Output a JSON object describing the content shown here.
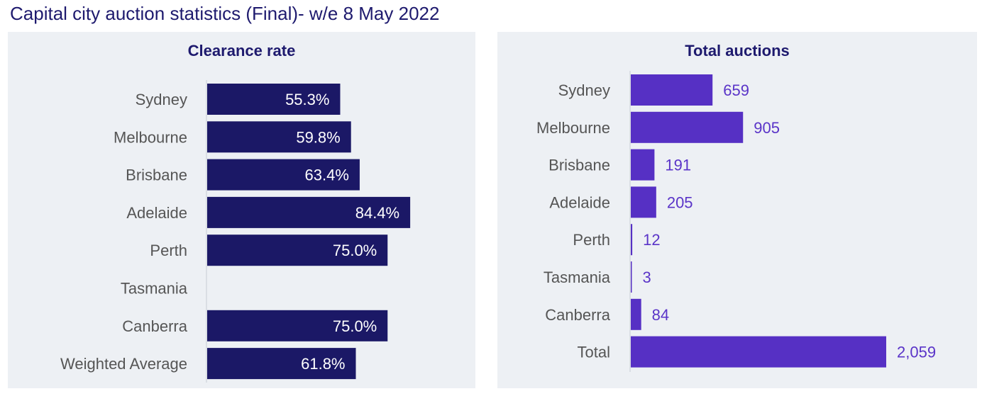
{
  "header": {
    "title": "Capital city auction statistics (Final)- w/e 8 May 2022"
  },
  "colors": {
    "clearance_bar": "#1b1866",
    "auctions_bar": "#5630c4",
    "auctions_label": "#5a34c8",
    "panel_bg": "#edf0f4"
  },
  "chart_data": [
    {
      "type": "bar",
      "orientation": "horizontal",
      "title": "Clearance rate",
      "categories": [
        "Sydney",
        "Melbourne",
        "Brisbane",
        "Adelaide",
        "Perth",
        "Tasmania",
        "Canberra",
        "Weighted Average"
      ],
      "values": [
        55.3,
        59.8,
        63.4,
        84.4,
        75.0,
        null,
        75.0,
        61.8
      ],
      "labels": [
        "55.3%",
        "59.8%",
        "63.4%",
        "84.4%",
        "75.0%",
        "",
        "75.0%",
        "61.8%"
      ],
      "xlim": [
        0,
        100
      ],
      "grid": false
    },
    {
      "type": "bar",
      "orientation": "horizontal",
      "title": "Total auctions",
      "categories": [
        "Sydney",
        "Melbourne",
        "Brisbane",
        "Adelaide",
        "Perth",
        "Tasmania",
        "Canberra",
        "Total"
      ],
      "values": [
        659,
        905,
        191,
        205,
        12,
        3,
        84,
        2059
      ],
      "labels": [
        "659",
        "905",
        "191",
        "205",
        "12",
        "3",
        "84",
        "2,059"
      ],
      "xlim": [
        0,
        2059
      ],
      "grid": false
    }
  ]
}
